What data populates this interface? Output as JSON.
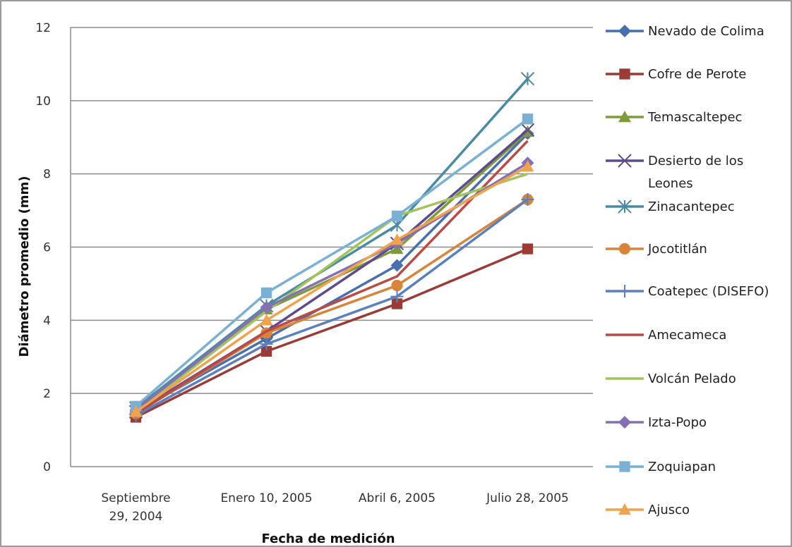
{
  "chart_data": {
    "type": "line",
    "title": "",
    "xlabel": "Fecha de medición",
    "ylabel": "Diámetro promedio (mm)",
    "categories": [
      [
        "Septiembre",
        "29, 2004"
      ],
      [
        "Enero 10, 2005"
      ],
      [
        "Abril 6, 2005"
      ],
      [
        "Julio 28, 2005"
      ]
    ],
    "ylim": [
      0,
      12
    ],
    "yticks": [
      "0",
      "2",
      "4",
      "6",
      "8",
      "10",
      "12"
    ],
    "grid": "horizontal",
    "legend_position": "right",
    "series": [
      {
        "name": "Nevado de Colima",
        "color": "#4a6fae",
        "marker": "diamond",
        "values": [
          1.5,
          3.5,
          5.5,
          9.1
        ]
      },
      {
        "name": "Cofre de Perote",
        "color": "#9b3b36",
        "marker": "square",
        "values": [
          1.35,
          3.15,
          4.45,
          5.95
        ]
      },
      {
        "name": "Temascaltepec",
        "color": "#7d9b3a",
        "marker": "triangle",
        "values": [
          1.55,
          4.3,
          5.95,
          9.15
        ]
      },
      {
        "name": [
          "Desierto de los",
          "Leones"
        ],
        "color": "#5e4a8c",
        "marker": "x",
        "values": [
          1.5,
          3.7,
          6.1,
          9.2
        ]
      },
      {
        "name": "Zinacantepec",
        "color": "#4a8aa3",
        "marker": "star",
        "values": [
          1.6,
          4.4,
          6.6,
          10.6
        ]
      },
      {
        "name": "Jocotitlán",
        "color": "#d8843a",
        "marker": "circle",
        "values": [
          1.45,
          3.65,
          4.95,
          7.3
        ]
      },
      {
        "name": "Coatepec (DISEFO)",
        "color": "#5c7fbf",
        "marker": "plus",
        "values": [
          1.4,
          3.35,
          4.65,
          7.3
        ]
      },
      {
        "name": "Amecameca",
        "color": "#b94b44",
        "marker": "none",
        "values": [
          1.45,
          3.7,
          5.2,
          8.9
        ]
      },
      {
        "name": "Volcán Pelado",
        "color": "#a3c45c",
        "marker": "none",
        "values": [
          1.5,
          4.25,
          6.85,
          8.0
        ]
      },
      {
        "name": "Izta-Popo",
        "color": "#8571b2",
        "marker": "diamond",
        "values": [
          1.55,
          4.35,
          6.1,
          8.3
        ]
      },
      {
        "name": "Zoquiapan",
        "color": "#7ab0d3",
        "marker": "square",
        "values": [
          1.65,
          4.75,
          6.85,
          9.5
        ]
      },
      {
        "name": "Ajusco",
        "color": "#f0a34e",
        "marker": "triangle",
        "values": [
          1.5,
          4.0,
          6.2,
          8.2
        ]
      }
    ]
  }
}
